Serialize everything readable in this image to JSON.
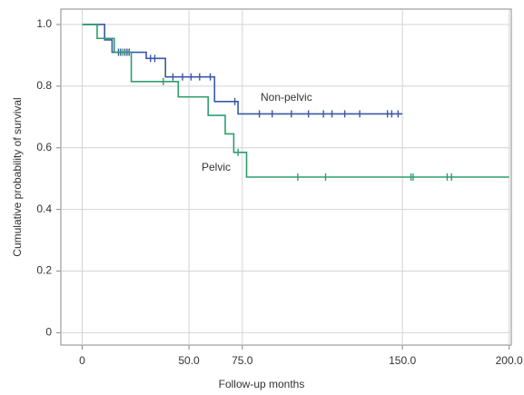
{
  "chart_data": {
    "type": "step",
    "xlabel": "Follow-up months",
    "ylabel": "Cumulative probability of survival",
    "xlim": [
      -10,
      201
    ],
    "ylim": [
      -0.04,
      1.05
    ],
    "xticks": [
      0,
      {
        "value": 50,
        "label": "50.0"
      },
      {
        "value": 75,
        "label": "75.0"
      },
      {
        "value": 150,
        "label": "150.0"
      },
      {
        "value": 200,
        "label": "200.0"
      }
    ],
    "yticks": [
      0,
      0.2,
      0.4,
      0.6,
      0.8,
      {
        "value": 1,
        "label": "1.0"
      }
    ],
    "grid": true,
    "series": [
      {
        "name": "Non-pelvic",
        "color": "#3b58a6",
        "x": [
          0,
          10.5,
          14,
          30,
          39,
          62,
          73,
          150
        ],
        "values": [
          1.0,
          0.95,
          0.91,
          0.89,
          0.83,
          0.75,
          0.71,
          0.71
        ],
        "censored_x": [
          17,
          18,
          20,
          21,
          22,
          32,
          34,
          42.5,
          47,
          51,
          55,
          60,
          71.5,
          83,
          89,
          98,
          106,
          113,
          117,
          123,
          130,
          143,
          145,
          148
        ]
      },
      {
        "name": "Pelvic",
        "color": "#2e9e6e",
        "x": [
          0,
          7,
          15,
          23,
          45,
          59,
          67,
          71,
          77,
          200
        ],
        "values": [
          1.0,
          0.955,
          0.91,
          0.815,
          0.765,
          0.705,
          0.645,
          0.585,
          0.505,
          0.505
        ],
        "censored_x": [
          19,
          38,
          73,
          101,
          114,
          154,
          155,
          171,
          173
        ]
      }
    ]
  }
}
